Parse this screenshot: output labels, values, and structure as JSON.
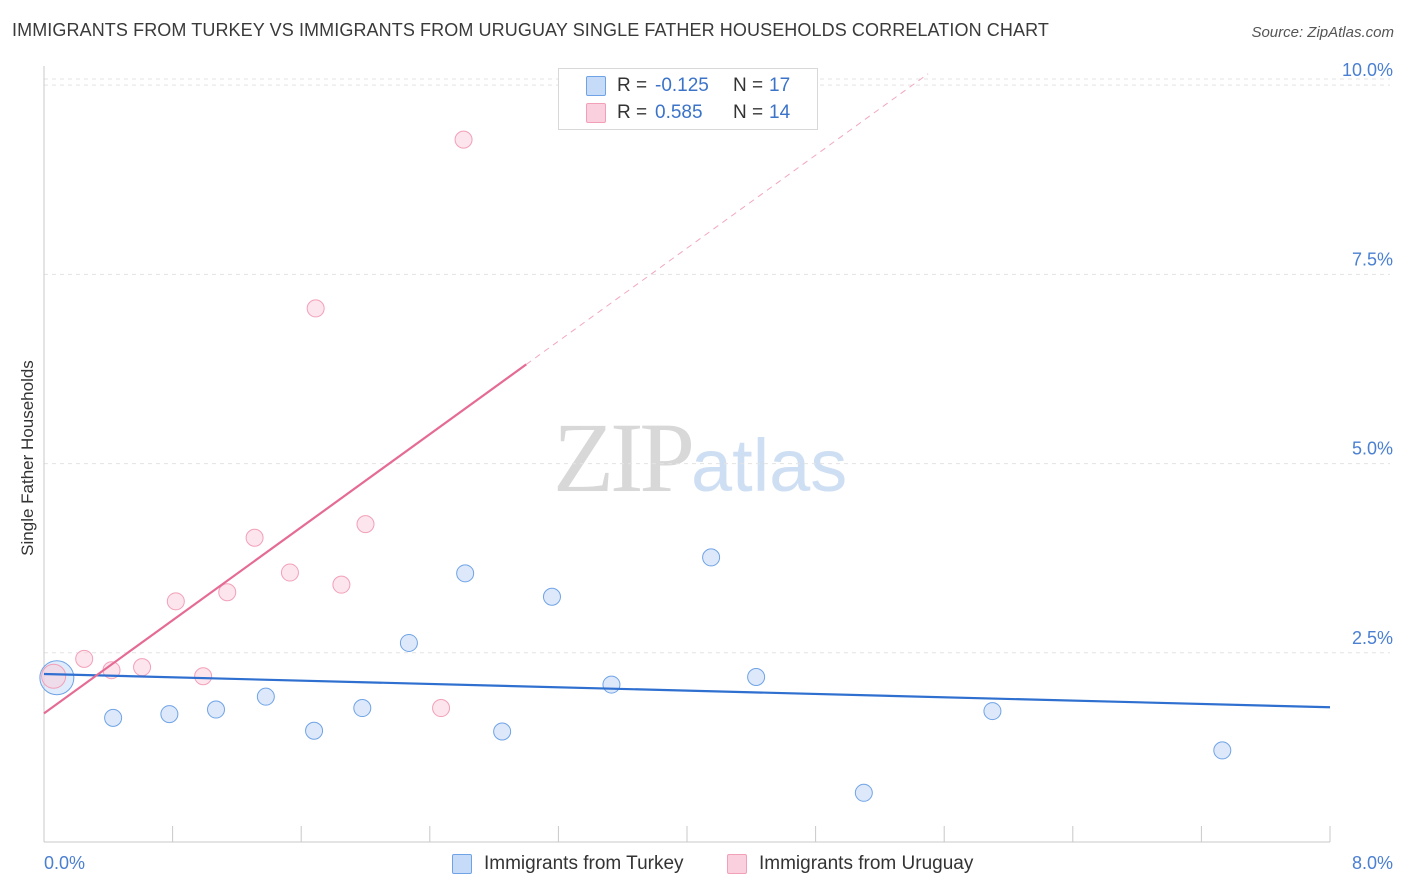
{
  "title": "IMMIGRANTS FROM TURKEY VS IMMIGRANTS FROM URUGUAY SINGLE FATHER HOUSEHOLDS CORRELATION CHART",
  "source": "Source: ZipAtlas.com",
  "watermark": {
    "zip": "ZIP",
    "atlas": "atlas"
  },
  "legend": {
    "turkey": {
      "r_label": "R =",
      "r_value": "-0.125",
      "n_label": "N =",
      "n_value": "17"
    },
    "uruguay": {
      "r_label": "R =",
      "r_value": "0.585",
      "n_label": "N =",
      "n_value": "14"
    }
  },
  "chart_data": {
    "type": "scatter",
    "title": "IMMIGRANTS FROM TURKEY VS IMMIGRANTS FROM URUGUAY SINGLE FATHER HOUSEHOLDS CORRELATION CHART",
    "xlabel": "",
    "ylabel": "Single Father Households",
    "xlim": [
      0,
      8
    ],
    "ylim": [
      0,
      10.2
    ],
    "x_tick_labels": [
      "0.0%",
      "8.0%"
    ],
    "y_ticks": [
      2.5,
      5.0,
      7.5,
      10.0
    ],
    "y_tick_labels": [
      "2.5%",
      "5.0%",
      "7.5%",
      "10.0%"
    ],
    "grid": true,
    "legend_placement": "bottom-center",
    "colors": {
      "turkey": "#6fa3e6",
      "uruguay": "#f2a0b8",
      "turkey_line": "#2e6fcf",
      "uruguay_line": "#e56b95"
    },
    "series": [
      {
        "name": "Immigrants from Turkey",
        "points": [
          [
            0.08,
            2.17
          ],
          [
            0.43,
            1.64
          ],
          [
            0.78,
            1.69
          ],
          [
            1.07,
            1.75
          ],
          [
            1.38,
            1.92
          ],
          [
            1.68,
            1.47
          ],
          [
            1.98,
            1.77
          ],
          [
            2.27,
            2.63
          ],
          [
            2.62,
            3.55
          ],
          [
            2.85,
            1.46
          ],
          [
            3.16,
            3.24
          ],
          [
            3.53,
            2.08
          ],
          [
            4.15,
            3.76
          ],
          [
            4.43,
            2.18
          ],
          [
            5.1,
            0.65
          ],
          [
            5.9,
            1.73
          ],
          [
            7.33,
            1.21
          ]
        ],
        "trend": {
          "x": [
            0.0,
            8.0
          ],
          "y": [
            2.22,
            1.78
          ]
        }
      },
      {
        "name": "Immigrants from Uruguay",
        "points": [
          [
            0.06,
            2.19
          ],
          [
            0.25,
            2.42
          ],
          [
            0.42,
            2.27
          ],
          [
            0.61,
            2.31
          ],
          [
            0.82,
            3.18
          ],
          [
            0.99,
            2.19
          ],
          [
            1.14,
            3.3
          ],
          [
            1.31,
            4.02
          ],
          [
            1.53,
            3.56
          ],
          [
            1.69,
            7.05
          ],
          [
            1.85,
            3.4
          ],
          [
            2.0,
            4.2
          ],
          [
            2.47,
            1.77
          ],
          [
            2.61,
            9.28
          ]
        ],
        "trend": {
          "x": [
            0.0,
            3.0
          ],
          "y": [
            1.7,
            6.31
          ]
        },
        "trend_extension": {
          "x": [
            3.0,
            5.5
          ],
          "y": [
            6.31,
            10.15
          ]
        }
      }
    ]
  }
}
